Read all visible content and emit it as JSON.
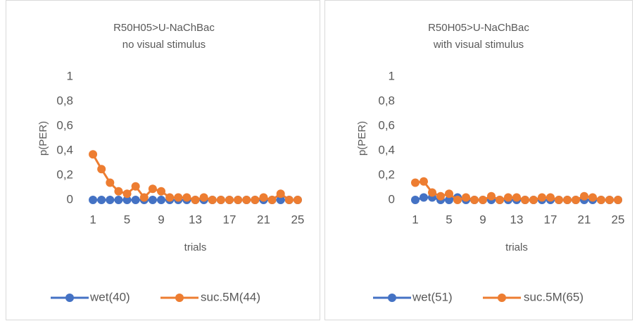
{
  "chart_data": [
    {
      "type": "line",
      "title": "R50H05>U-NaChBac",
      "subtitle": "no visual stimulus",
      "x_label": "trials",
      "y_label": "p(PER)",
      "categories": [
        "1",
        null,
        null,
        null,
        "5",
        null,
        null,
        null,
        "9",
        null,
        null,
        null,
        "13",
        null,
        null,
        null,
        "17",
        null,
        null,
        null,
        "21",
        null,
        null,
        null,
        "25"
      ],
      "series": [
        {
          "name": "wet(40)",
          "color": "#4472c4",
          "values": [
            0,
            0,
            0,
            0,
            0,
            0,
            0,
            0,
            0,
            0,
            0,
            0,
            0,
            0,
            0,
            0,
            0,
            0,
            0,
            0,
            0,
            0,
            0,
            0,
            0
          ]
        },
        {
          "name": "suc.5M(44)",
          "color": "#ed7d31",
          "values": [
            0.37,
            0.25,
            0.14,
            0.07,
            0.05,
            0.11,
            0.02,
            0.09,
            0.07,
            0.02,
            0.02,
            0.02,
            0,
            0.02,
            0,
            0,
            0,
            0,
            0,
            0,
            0.02,
            0,
            0.05,
            0,
            0
          ]
        }
      ],
      "ylim": [
        0,
        1
      ],
      "yticks": [
        0,
        {
          "value": 0.2,
          "label": "0,2"
        },
        {
          "value": 0.4,
          "label": "0,4"
        },
        {
          "value": 0.6,
          "label": "0,6"
        },
        {
          "value": 0.8,
          "label": "0,8"
        },
        1
      ],
      "grid": false,
      "legend": "bottom"
    },
    {
      "type": "line",
      "title": "R50H05>U-NaChBac",
      "subtitle": "with visual stimulus",
      "x_label": "trials",
      "y_label": "p(PER)",
      "categories": [
        "1",
        null,
        null,
        null,
        "5",
        null,
        null,
        null,
        "9",
        null,
        null,
        null,
        "13",
        null,
        null,
        null,
        "17",
        null,
        null,
        null,
        "21",
        null,
        null,
        null,
        "25"
      ],
      "series": [
        {
          "name": "wet(51)",
          "color": "#4472c4",
          "values": [
            0,
            0.02,
            0.02,
            0,
            0,
            0.02,
            0,
            0,
            0,
            0,
            0,
            0,
            0,
            0,
            0,
            0,
            0,
            0,
            0,
            0,
            0,
            0,
            0,
            0,
            0
          ]
        },
        {
          "name": "suc.5M(65)",
          "color": "#ed7d31",
          "values": [
            0.14,
            0.15,
            0.06,
            0.03,
            0.05,
            0,
            0.02,
            0,
            0,
            0.03,
            0,
            0.02,
            0.02,
            0,
            0,
            0.02,
            0.02,
            0,
            0,
            0,
            0.03,
            0.02,
            0,
            0,
            0
          ]
        }
      ],
      "ylim": [
        0,
        1
      ],
      "yticks": [
        0,
        {
          "value": 0.2,
          "label": "0,2"
        },
        {
          "value": 0.4,
          "label": "0,4"
        },
        {
          "value": 0.6,
          "label": "0,6"
        },
        {
          "value": 0.8,
          "label": "0,8"
        },
        1
      ],
      "grid": false,
      "legend": "bottom"
    }
  ]
}
